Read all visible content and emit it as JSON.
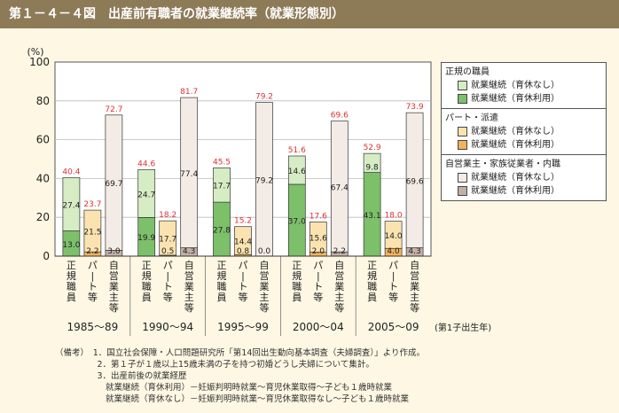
{
  "header": {
    "title": "第１－４－４図　出産前有職者の就業継続率（就業形態別）"
  },
  "chart_data": {
    "type": "bar",
    "stacked": true,
    "y_unit_label": "(%)",
    "ylim": [
      0,
      100
    ],
    "yticks": [
      0,
      20,
      40,
      60,
      80,
      100
    ],
    "period_labels": [
      "1985～89",
      "1990～94",
      "1995～99",
      "2000～04",
      "2005～09"
    ],
    "category_labels": [
      "正規職員",
      "パート等",
      "自営業主等"
    ],
    "x_axis_note": "(第1子出生年)",
    "categories": [
      "1985～89 正規職員",
      "1985～89 パート等",
      "1985～89 自営業主等",
      "1990～94 正規職員",
      "1990～94 パート等",
      "1990～94 自営業主等",
      "1995～99 正規職員",
      "1995～99 パート等",
      "1995～99 自営業主等",
      "2000～04 正規職員",
      "2000～04 パート等",
      "2000～04 自営業主等",
      "2005～09 正規職員",
      "2005～09 パート等",
      "2005～09 自営業主等"
    ],
    "bar_group": [
      0,
      1,
      2,
      0,
      1,
      2,
      0,
      1,
      2,
      0,
      1,
      2,
      0,
      1,
      2
    ],
    "lower_values": [
      13.0,
      2.2,
      3.0,
      19.9,
      0.5,
      4.3,
      27.8,
      0.8,
      0.0,
      37.0,
      2.0,
      2.2,
      43.1,
      4.0,
      4.3
    ],
    "upper_values": [
      27.4,
      21.5,
      69.7,
      24.7,
      17.7,
      77.4,
      17.7,
      14.4,
      79.2,
      14.6,
      15.6,
      67.4,
      9.8,
      14.0,
      69.6
    ],
    "totals": [
      "40.4",
      "23.7",
      "72.7",
      "44.6",
      "18.2",
      "81.7",
      "45.5",
      "15.2",
      "79.2",
      "51.6",
      "17.6",
      "69.6",
      "52.9",
      "18.0",
      "73.9"
    ],
    "lower_labels": [
      "13.0",
      "2.2",
      "3.0",
      "19.9",
      "0.5",
      "4.3",
      "27.8",
      "0.8",
      "0.0",
      "37.0",
      "2.0",
      "2.2",
      "43.1",
      "4.0",
      "4.3"
    ],
    "upper_labels": [
      "27.4",
      "21.5",
      "69.7",
      "24.7",
      "17.7",
      "77.4",
      "17.7",
      "14.4",
      "79.2",
      "14.6",
      "15.6",
      "67.4",
      "9.8",
      "14.0",
      "69.6"
    ],
    "colors": {
      "regular_upper": "#d6ecc4",
      "regular_lower": "#7cc06a",
      "part_upper": "#fae3b0",
      "part_lower": "#f2b35a",
      "self_upper": "#f3ebe6",
      "self_lower": "#c2b0a6",
      "total_text": "#e03030"
    }
  },
  "legend": {
    "groups": [
      {
        "title": "正規の職員",
        "items": [
          "就業継続（育休なし）",
          "就業継続（育休利用）"
        ]
      },
      {
        "title": "パート・派遣",
        "items": [
          "就業継続（育休なし）",
          "就業継続（育休利用）"
        ]
      },
      {
        "title": "自営業主・家族従業者・内職",
        "items": [
          "就業継続（育休なし）",
          "就業継続（育休利用）"
        ]
      }
    ]
  },
  "notes": {
    "lines": [
      "（備考）　1．国立社会保障・人口問題研究所「第14回出生動向基本調査（夫婦調査）」より作成。",
      "　　　　　2．第１子が１歳以上15歳未満の子を持つ初婚どうし夫婦について集計。",
      "　　　　　3．出産前後の就業経歴",
      "　　　　　　就業継続（育休利用）－妊娠判明時就業～育児休業取得～子ども１歳時就業",
      "　　　　　　就業継続（育休なし）－妊娠判明時就業～育児休業取得なし～子ども１歳時就業"
    ]
  }
}
